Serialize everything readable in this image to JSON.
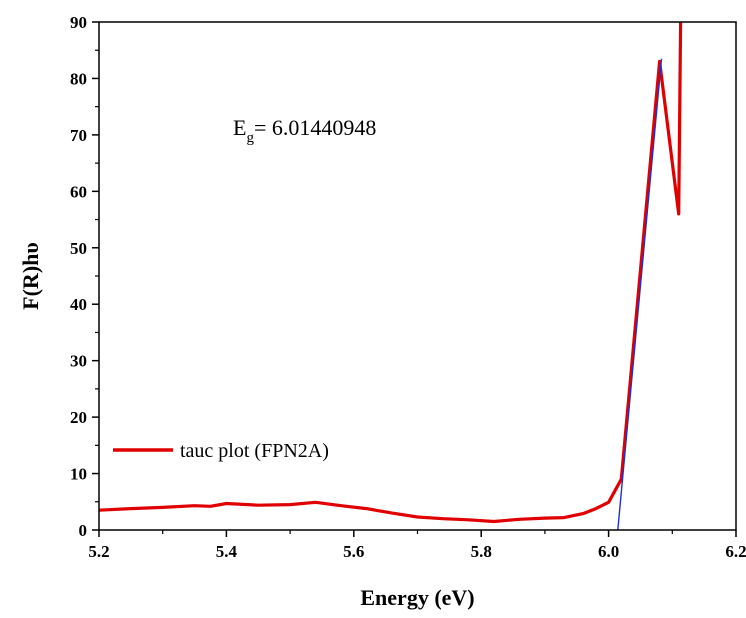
{
  "chart_data": {
    "type": "line",
    "title": "",
    "xlabel": "Energy (eV)",
    "ylabel": "F(R)hυ",
    "xlim": [
      5.2,
      6.2
    ],
    "ylim": [
      0,
      90
    ],
    "xticks": [
      "5.2",
      "5.4",
      "5.6",
      "5.8",
      "6.0",
      "6.2"
    ],
    "yticks": [
      "0",
      "10",
      "20",
      "30",
      "40",
      "50",
      "60",
      "70",
      "80",
      "90"
    ],
    "grid": false,
    "legend_position": "lower-left",
    "annotation": {
      "prefix": "E",
      "subscript": "g",
      "suffix": "= 6.01440948"
    },
    "series": [
      {
        "name": "tauc plot (FPN2A)",
        "color": "#e00000",
        "x": [
          5.2,
          5.25,
          5.3,
          5.35,
          5.375,
          5.4,
          5.45,
          5.5,
          5.54,
          5.58,
          5.62,
          5.66,
          5.7,
          5.74,
          5.78,
          5.82,
          5.86,
          5.9,
          5.93,
          5.96,
          5.98,
          6.0,
          6.02,
          6.08,
          6.11,
          6.113
        ],
        "y": [
          3.5,
          3.8,
          4.0,
          4.3,
          4.2,
          4.7,
          4.4,
          4.5,
          4.9,
          4.3,
          3.8,
          3.0,
          2.3,
          2.0,
          1.8,
          1.5,
          1.9,
          2.1,
          2.2,
          2.9,
          3.8,
          4.9,
          9.0,
          83.0,
          56.0,
          90.0
        ]
      },
      {
        "name": "",
        "color": "#1f2fd0",
        "x": [
          6.01440948,
          6.083
        ],
        "y": [
          0,
          83.5
        ]
      }
    ]
  }
}
